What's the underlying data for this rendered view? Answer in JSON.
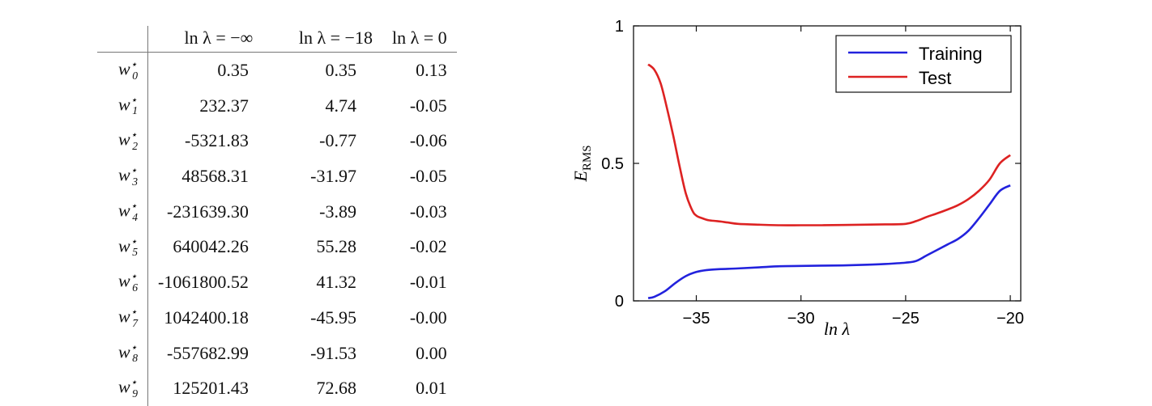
{
  "table": {
    "headers": [
      "ln λ = −∞",
      "ln λ = −18",
      "ln λ = 0"
    ],
    "rows": [
      {
        "symbol": "w",
        "index": "0",
        "star": "⋆",
        "values": [
          "0.35",
          "0.35",
          "0.13"
        ]
      },
      {
        "symbol": "w",
        "index": "1",
        "star": "⋆",
        "values": [
          "232.37",
          "4.74",
          "-0.05"
        ]
      },
      {
        "symbol": "w",
        "index": "2",
        "star": "⋆",
        "values": [
          "-5321.83",
          "-0.77",
          "-0.06"
        ]
      },
      {
        "symbol": "w",
        "index": "3",
        "star": "⋆",
        "values": [
          "48568.31",
          "-31.97",
          "-0.05"
        ]
      },
      {
        "symbol": "w",
        "index": "4",
        "star": "⋆",
        "values": [
          "-231639.30",
          "-3.89",
          "-0.03"
        ]
      },
      {
        "symbol": "w",
        "index": "5",
        "star": "⋆",
        "values": [
          "640042.26",
          "55.28",
          "-0.02"
        ]
      },
      {
        "symbol": "w",
        "index": "6",
        "star": "⋆",
        "values": [
          "-1061800.52",
          "41.32",
          "-0.01"
        ]
      },
      {
        "symbol": "w",
        "index": "7",
        "star": "⋆",
        "values": [
          "1042400.18",
          "-45.95",
          "-0.00"
        ]
      },
      {
        "symbol": "w",
        "index": "8",
        "star": "⋆",
        "values": [
          "-557682.99",
          "-91.53",
          "0.00"
        ]
      },
      {
        "symbol": "w",
        "index": "9",
        "star": "⋆",
        "values": [
          "125201.43",
          "72.68",
          "0.01"
        ]
      }
    ]
  },
  "chart_data": {
    "type": "line",
    "xlabel": "ln λ",
    "ylabel": "E",
    "ylabel_sub": "RMS",
    "xlim": [
      -38,
      -19.5
    ],
    "ylim": [
      0,
      1
    ],
    "xticks": [
      -35,
      -30,
      -25,
      -20
    ],
    "xtick_labels": [
      "−35",
      "−30",
      "−25",
      "−20"
    ],
    "yticks": [
      0,
      0.5,
      1
    ],
    "ytick_labels": [
      "0",
      "0.5",
      "1"
    ],
    "grid": false,
    "legend_position": "top-right",
    "series": [
      {
        "name": "Training",
        "color": "#2222dd",
        "x": [
          -37.3,
          -37,
          -36.5,
          -36,
          -35.5,
          -35,
          -34.5,
          -34,
          -33,
          -32,
          -31,
          -30,
          -29,
          -28,
          -27,
          -26,
          -25,
          -24.5,
          -24,
          -23.5,
          -23,
          -22.5,
          -22,
          -21.5,
          -21,
          -20.5,
          -20
        ],
        "y": [
          0.01,
          0.015,
          0.035,
          0.065,
          0.09,
          0.105,
          0.112,
          0.115,
          0.118,
          0.122,
          0.126,
          0.127,
          0.128,
          0.129,
          0.131,
          0.134,
          0.139,
          0.145,
          0.165,
          0.185,
          0.205,
          0.225,
          0.255,
          0.3,
          0.35,
          0.4,
          0.42
        ]
      },
      {
        "name": "Test",
        "color": "#dd2222",
        "x": [
          -37.3,
          -37,
          -36.7,
          -36.4,
          -36.1,
          -35.8,
          -35.5,
          -35.2,
          -35,
          -34.7,
          -34.4,
          -34,
          -33.5,
          -33,
          -32,
          -31,
          -30,
          -29,
          -28,
          -27,
          -26,
          -25,
          -24.5,
          -24,
          -23.5,
          -23,
          -22.5,
          -22,
          -21.5,
          -21,
          -20.5,
          -20
        ],
        "y": [
          0.86,
          0.84,
          0.79,
          0.7,
          0.6,
          0.49,
          0.39,
          0.33,
          0.31,
          0.3,
          0.293,
          0.29,
          0.285,
          0.28,
          0.277,
          0.275,
          0.275,
          0.275,
          0.276,
          0.277,
          0.278,
          0.28,
          0.29,
          0.305,
          0.318,
          0.332,
          0.348,
          0.37,
          0.4,
          0.44,
          0.5,
          0.53
        ]
      }
    ]
  }
}
